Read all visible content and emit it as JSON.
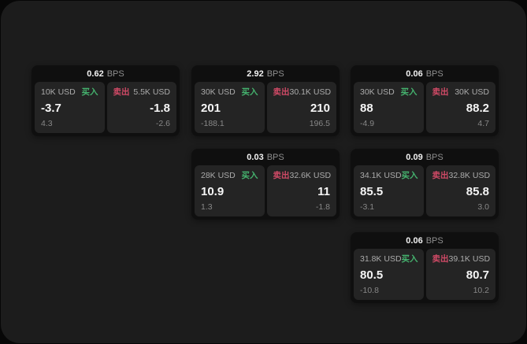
{
  "labels": {
    "bps": "BPS",
    "buy": "买入",
    "sell": "卖出"
  },
  "colors": {
    "background": "#070707",
    "panel": "#1c1c1c",
    "card": "#0f0f0f",
    "subpanel": "#242424",
    "buy": "#45b36e",
    "sell": "#d04a66"
  },
  "cards": [
    {
      "bps": "0.62",
      "buy": {
        "amount": "10K USD",
        "value": "-3.7",
        "sub": "4.3"
      },
      "sell": {
        "amount": "5.5K USD",
        "value": "-1.8",
        "sub": "-2.6"
      }
    },
    {
      "bps": "2.92",
      "buy": {
        "amount": "30K USD",
        "value": "201",
        "sub": "-188.1"
      },
      "sell": {
        "amount": "30.1K USD",
        "value": "210",
        "sub": "196.5"
      }
    },
    {
      "bps": "0.06",
      "buy": {
        "amount": "30K USD",
        "value": "88",
        "sub": "-4.9"
      },
      "sell": {
        "amount": "30K USD",
        "value": "88.2",
        "sub": "4.7"
      }
    },
    {
      "bps": "0.03",
      "buy": {
        "amount": "28K USD",
        "value": "10.9",
        "sub": "1.3"
      },
      "sell": {
        "amount": "32.6K USD",
        "value": "11",
        "sub": "-1.8"
      }
    },
    {
      "bps": "0.09",
      "buy": {
        "amount": "34.1K USD",
        "value": "85.5",
        "sub": "-3.1"
      },
      "sell": {
        "amount": "32.8K USD",
        "value": "85.8",
        "sub": "3.0"
      }
    },
    {
      "bps": "0.06",
      "buy": {
        "amount": "31.8K USD",
        "value": "80.5",
        "sub": "-10.8"
      },
      "sell": {
        "amount": "39.1K USD",
        "value": "80.7",
        "sub": "10.2"
      }
    }
  ]
}
